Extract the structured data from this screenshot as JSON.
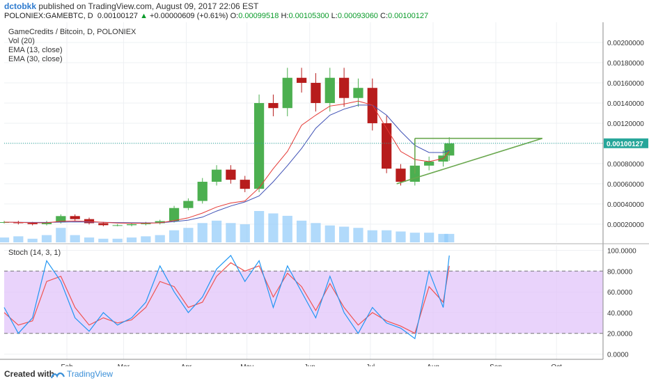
{
  "header": {
    "author": "dctobkk",
    "published_text": " published on TradingView.com, August 09, 2017 22:06 EST",
    "symbol_line": "POLONIEX:GAMEBTC, D",
    "last_price": "0.00100127",
    "change_arrow": "▲",
    "change": "+0.00000609 (+0.61%)",
    "o_label": "O:",
    "o_value": "0.00099518",
    "h_label": "H:",
    "h_value": "0.00105300",
    "l_label": "L:",
    "l_value": "0.00093060",
    "c_label": "C:",
    "c_value": "0.00100127"
  },
  "legend": {
    "title": "GameCredits / Bitcoin, D, POLONIEX",
    "vol": "Vol (20)",
    "ema13": "EMA (13, close)",
    "ema30": "EMA (30, close)",
    "stoch": "Stoch (14, 3, 1)"
  },
  "footer": {
    "made": "Created with",
    "brand": "TradingView"
  },
  "colors": {
    "up": "#4caf50",
    "down": "#b71c1c",
    "ema13": "#e53935",
    "ema30": "#3f51b5",
    "volume": "#90caf9",
    "stoch_k": "#2196f3",
    "stoch_d": "#ef5350",
    "band": "#e1c4f9",
    "pattern": "#6aa84f",
    "price_line": "#26a69a"
  },
  "chart_data": {
    "type": "candlestick",
    "x": [
      "2017-01-01",
      "2017-01-08",
      "2017-01-15",
      "2017-01-22",
      "2017-01-29",
      "2017-02-05",
      "2017-02-12",
      "2017-02-19",
      "2017-02-26",
      "2017-03-05",
      "2017-03-12",
      "2017-03-19",
      "2017-03-26",
      "2017-04-02",
      "2017-04-09",
      "2017-04-16",
      "2017-04-23",
      "2017-04-30",
      "2017-05-07",
      "2017-05-14",
      "2017-05-21",
      "2017-05-28",
      "2017-06-04",
      "2017-06-11",
      "2017-06-18",
      "2017-06-25",
      "2017-07-02",
      "2017-07-09",
      "2017-07-16",
      "2017-07-23",
      "2017-07-30",
      "2017-08-06",
      "2017-08-09"
    ],
    "close": [
      0.00022,
      0.00021,
      0.0002,
      0.00022,
      0.00028,
      0.00025,
      0.00021,
      0.00019,
      0.00019,
      0.0002,
      0.00021,
      0.00023,
      0.00036,
      0.00043,
      0.00062,
      0.00074,
      0.00064,
      0.00055,
      0.0014,
      0.00135,
      0.00165,
      0.0016,
      0.0014,
      0.00165,
      0.00145,
      0.00155,
      0.0012,
      0.00075,
      0.00062,
      0.00078,
      0.00082,
      0.00088,
      0.00100127
    ],
    "ema13": [
      0.00022,
      0.000218,
      0.000213,
      0.000214,
      0.000228,
      0.000232,
      0.000227,
      0.000219,
      0.000212,
      0.000209,
      0.00021,
      0.000213,
      0.000236,
      0.000263,
      0.00031,
      0.00037,
      0.00041,
      0.00043,
      0.00056,
      0.00075,
      0.00092,
      0.00118,
      0.00128,
      0.00137,
      0.00139,
      0.00142,
      0.00138,
      0.00115,
      0.00092,
      0.00084,
      0.00082,
      0.00085,
      0.00092
    ],
    "ema30": [
      0.00022,
      0.000219,
      0.000217,
      0.000217,
      0.00022,
      0.000223,
      0.000222,
      0.000219,
      0.000216,
      0.000214,
      0.000213,
      0.000214,
      0.000225,
      0.00024,
      0.00027,
      0.00033,
      0.00038,
      0.00042,
      0.00048,
      0.00062,
      0.00078,
      0.00095,
      0.00115,
      0.00128,
      0.00134,
      0.00138,
      0.00138,
      0.00128,
      0.00112,
      0.00098,
      0.00091,
      0.00091,
      0.00093
    ],
    "volume": [
      0.4,
      0.5,
      0.3,
      0.6,
      1.2,
      0.6,
      0.4,
      0.3,
      0.3,
      0.4,
      0.5,
      0.6,
      1.0,
      1.2,
      1.6,
      1.8,
      1.6,
      1.5,
      2.6,
      2.4,
      2.2,
      1.8,
      1.6,
      1.4,
      1.3,
      1.2,
      1.0,
      1.0,
      0.9,
      0.8,
      0.8,
      0.7,
      0.7
    ],
    "stoch_k": [
      45,
      20,
      35,
      90,
      70,
      35,
      22,
      40,
      28,
      35,
      50,
      85,
      60,
      40,
      55,
      82,
      95,
      70,
      90,
      45,
      85,
      60,
      35,
      75,
      40,
      20,
      45,
      30,
      25,
      15,
      80,
      45,
      95
    ],
    "stoch_d": [
      40,
      28,
      32,
      70,
      75,
      45,
      28,
      35,
      30,
      33,
      45,
      70,
      65,
      45,
      50,
      75,
      88,
      80,
      85,
      55,
      78,
      65,
      42,
      68,
      45,
      28,
      40,
      32,
      27,
      20,
      65,
      50,
      85
    ],
    "price_axis_ticks": [
      "0.00200000",
      "0.00180000",
      "0.00160000",
      "0.00140000",
      "0.00120000",
      "0.00100000",
      "0.00080000",
      "0.00060000",
      "0.00040000",
      "0.00020000"
    ],
    "price_axis_values": [
      0.002,
      0.0018,
      0.0016,
      0.0014,
      0.0012,
      0.001,
      0.0008,
      0.0006,
      0.0004,
      0.0002
    ],
    "price_ylim": [
      2e-05,
      0.0022
    ],
    "current_price_label": "0.00100127",
    "current_price": 0.00100127,
    "stoch_axis_ticks": [
      "100.0000",
      "80.0000",
      "60.0000",
      "40.0000",
      "20.0000",
      "0.0000"
    ],
    "stoch_axis_values": [
      100,
      80,
      60,
      40,
      20,
      0
    ],
    "stoch_ylim": [
      -5,
      105
    ],
    "stoch_band": [
      20,
      80
    ],
    "time_ticks": [
      "Feb",
      "Mar",
      "Apr",
      "May",
      "Jun",
      "Jul",
      "Aug",
      "Sep",
      "Oct"
    ],
    "time_tick_dates": [
      "2017-02-01",
      "2017-03-01",
      "2017-04-01",
      "2017-05-01",
      "2017-06-01",
      "2017-07-01",
      "2017-08-01",
      "2017-09-01",
      "2017-10-01"
    ],
    "x_range": [
      "2017-01-01",
      "2017-10-24"
    ],
    "triangle": {
      "top": {
        "from": [
          "2017-07-23",
          0.00105
        ],
        "to": [
          "2017-09-24",
          0.00105
        ]
      },
      "bottom": {
        "from": [
          "2017-07-14",
          0.0006
        ],
        "to": [
          "2017-09-24",
          0.00105
        ]
      },
      "left": {
        "from": [
          "2017-07-23",
          0.00105
        ],
        "to": [
          "2017-07-23",
          0.0007
        ]
      }
    },
    "grid": true
  }
}
